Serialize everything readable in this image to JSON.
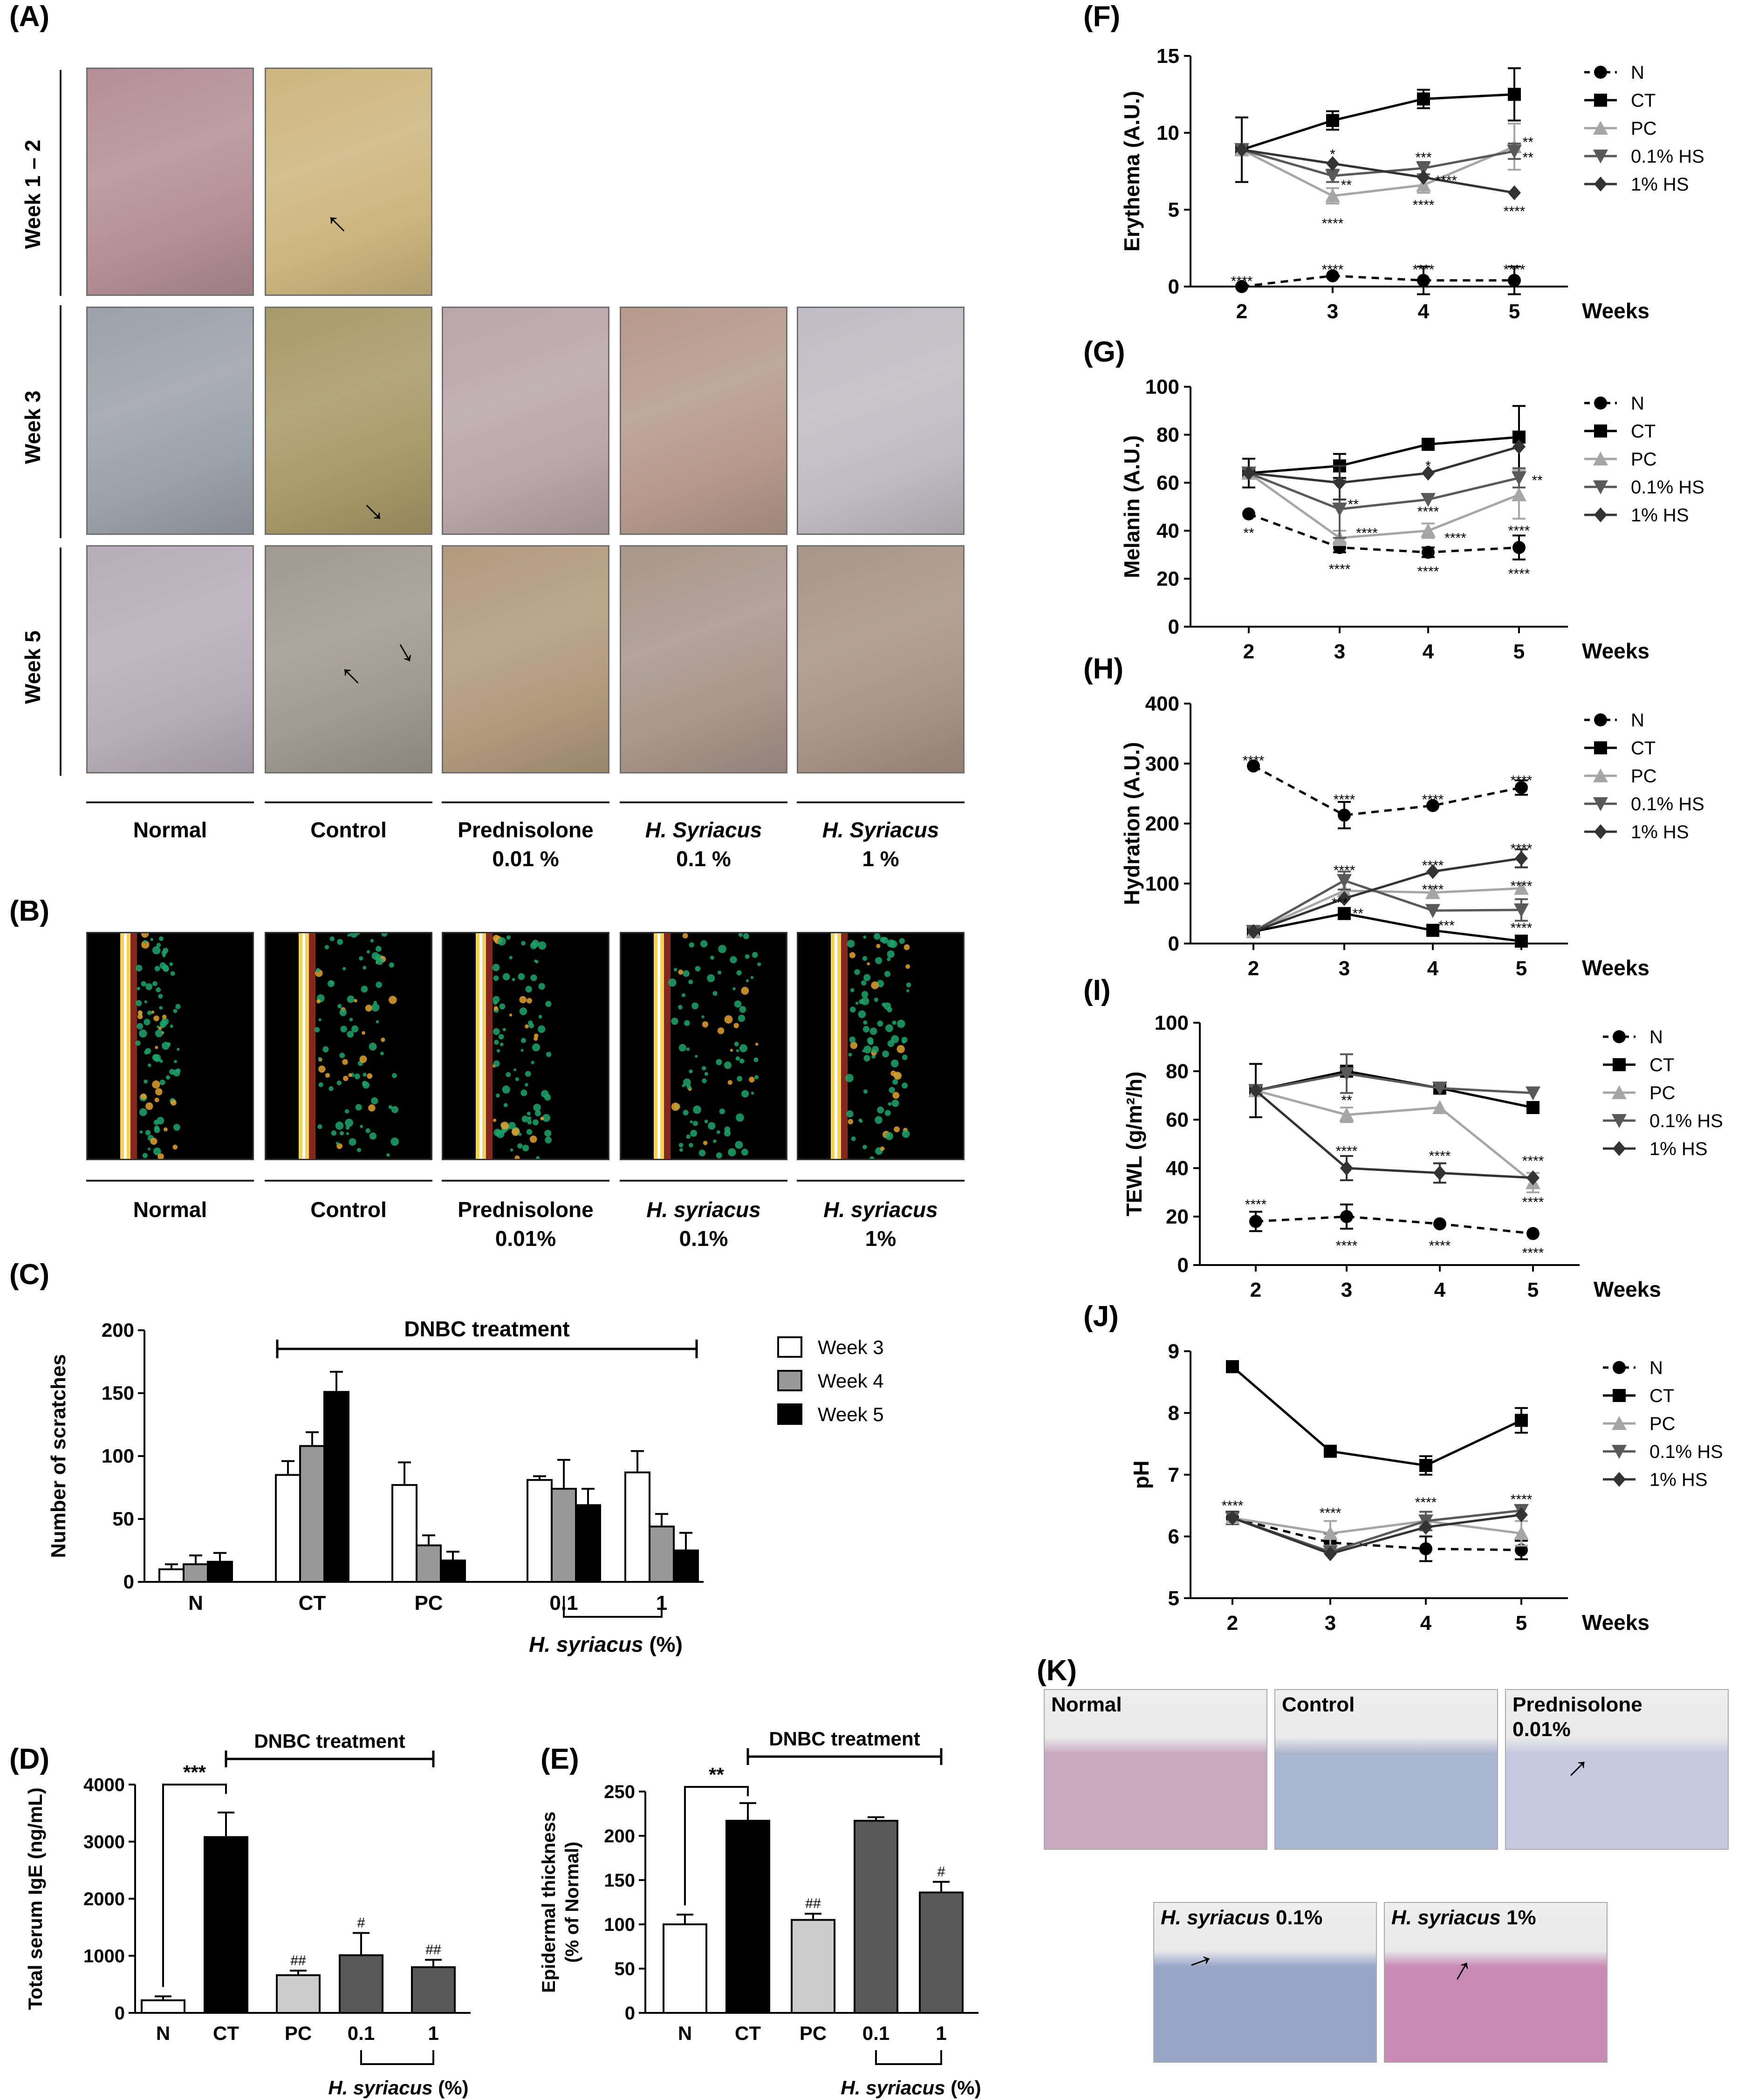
{
  "panel_labels": {
    "A": "(A)",
    "B": "(B)",
    "C": "(C)",
    "D": "(D)",
    "E": "(E)",
    "F": "(F)",
    "G": "(G)",
    "H": "(H)",
    "I": "(I)",
    "J": "(J)",
    "K": "(K)"
  },
  "panel_a": {
    "rows": [
      "Week 1 – 2",
      "Week 3",
      "Week 5"
    ],
    "captions": [
      {
        "line1": "Normal",
        "line2": "",
        "italic": false
      },
      {
        "line1": "Control",
        "line2": "",
        "italic": false
      },
      {
        "line1": "Prednisolone",
        "line2": "0.01 %",
        "italic": false
      },
      {
        "line1": "H. Syriacus",
        "line2": "0.1 %",
        "italic": true
      },
      {
        "line1": "H. Syriacus",
        "line2": "1 %",
        "italic": true
      }
    ],
    "tile_colors": [
      [
        "#b48f99",
        "#cdb67f",
        null,
        null,
        null
      ],
      [
        "#9da1ab",
        "#a89a68",
        "#b8a6a8",
        "#b69a8c",
        "#c0bcc3"
      ],
      [
        "#b7adb7",
        "#9f9a90",
        "#b29a7c",
        "#a9968c",
        "#a89585"
      ]
    ]
  },
  "panel_b": {
    "captions": [
      {
        "line1": "Normal",
        "line2": "",
        "italic": false
      },
      {
        "line1": "Control",
        "line2": "",
        "italic": false
      },
      {
        "line1": "Prednisolone",
        "line2": "0.01%",
        "italic": false
      },
      {
        "line1": "H. syriacus",
        "line2": "0.1%",
        "italic": true
      },
      {
        "line1": "H. syriacus",
        "line2": "1%",
        "italic": true
      }
    ]
  },
  "panel_k": {
    "labels": [
      "Normal",
      "Control",
      "Prednisolone\n0.01%",
      "H. syriacus 0.1%",
      "H. syriacus 1%"
    ]
  },
  "chart_data": [
    {
      "id": "C",
      "type": "bar",
      "ylabel": "Number of scratches",
      "ylim": [
        0,
        200
      ],
      "yticks": [
        0,
        50,
        100,
        150,
        200
      ],
      "categories": [
        "N",
        "CT",
        "PC",
        "0.1",
        "1"
      ],
      "series": [
        {
          "name": "Week 3",
          "color": "#ffffff",
          "values": [
            10,
            85,
            77,
            81,
            87
          ],
          "errors": [
            4,
            11,
            18,
            3,
            17
          ]
        },
        {
          "name": "Week 4",
          "color": "#999999",
          "values": [
            14,
            108,
            29,
            74,
            44
          ],
          "errors": [
            7,
            11,
            8,
            23,
            10
          ]
        },
        {
          "name": "Week 5",
          "color": "#000000",
          "values": [
            16,
            151,
            17,
            61,
            25
          ],
          "errors": [
            7,
            16,
            7,
            13,
            14
          ]
        }
      ],
      "annotation": "DNBC treatment",
      "group_label": "H. syriacus",
      "group_label_suffix": " (%)"
    },
    {
      "id": "D",
      "type": "bar",
      "ylabel": "Total serum IgE (ng/mL)",
      "ylim": [
        0,
        4000
      ],
      "yticks": [
        0,
        1000,
        2000,
        3000,
        4000
      ],
      "categories": [
        "N",
        "CT",
        "PC",
        "0.1",
        "1"
      ],
      "colors": [
        "#ffffff",
        "#000000",
        "#cccccc",
        "#595959",
        "#595959"
      ],
      "values": [
        220,
        3080,
        660,
        1010,
        800
      ],
      "errors": [
        70,
        430,
        80,
        390,
        130
      ],
      "marks": [
        "",
        "",
        "##",
        "#",
        "##"
      ],
      "significance": "***",
      "annotation": "DNBC treatment",
      "group_label": "H. syriacus",
      "group_label_suffix": " (%)"
    },
    {
      "id": "E",
      "type": "bar",
      "ylabel": "Epidermal thickness",
      "ylabel2": "(% of Normal)",
      "ylim": [
        0,
        250
      ],
      "yticks": [
        0,
        50,
        100,
        150,
        200,
        250
      ],
      "categories": [
        "N",
        "CT",
        "PC",
        "0.1",
        "1"
      ],
      "colors": [
        "#ffffff",
        "#000000",
        "#cccccc",
        "#595959",
        "#595959"
      ],
      "values": [
        100,
        217,
        105,
        217,
        136
      ],
      "errors": [
        11,
        20,
        7,
        4,
        12
      ],
      "marks": [
        "",
        "",
        "##",
        "",
        "#"
      ],
      "significance": "**",
      "annotation": "DNBC treatment",
      "group_label": "H. syriacus",
      "group_label_suffix": " (%)"
    },
    {
      "id": "F",
      "type": "line",
      "ylabel": "Erythema (A.U.)",
      "xlabel": "Weeks",
      "ylim": [
        0,
        15
      ],
      "yticks": [
        0,
        5,
        10,
        15
      ],
      "x": [
        2,
        3,
        4,
        5
      ],
      "series": [
        {
          "name": "N",
          "values": [
            0,
            0.7,
            0.4,
            0.4
          ],
          "errors": [
            0,
            0,
            0.9,
            0.9
          ]
        },
        {
          "name": "CT",
          "values": [
            8.9,
            10.8,
            12.2,
            12.5
          ],
          "errors": [
            2.1,
            0.6,
            0.6,
            1.7
          ]
        },
        {
          "name": "PC",
          "values": [
            8.9,
            5.9,
            6.6,
            9.1
          ],
          "errors": [
            0,
            0.5,
            0.5,
            1.5
          ]
        },
        {
          "name": "0.1% HS",
          "values": [
            8.9,
            7.2,
            7.7,
            8.8
          ],
          "errors": [
            0,
            0.4,
            0.4,
            0.5
          ]
        },
        {
          "name": "1% HS",
          "values": [
            8.9,
            8.0,
            7.1,
            6.1
          ],
          "errors": [
            0,
            0,
            0,
            0
          ]
        }
      ],
      "stars": [
        {
          "x": 2,
          "y": 0.35,
          "t": "****",
          "dx": 0
        },
        {
          "x": 3,
          "y": 1.1,
          "t": "****",
          "dx": 0
        },
        {
          "x": 4,
          "y": 1.1,
          "t": "****",
          "dx": 0
        },
        {
          "x": 5,
          "y": 1.1,
          "t": "****",
          "dx": 0
        },
        {
          "x": 3,
          "y": 8.6,
          "t": "*",
          "dx": 0
        },
        {
          "x": 3,
          "y": 6.6,
          "t": "**",
          "dx": 0.15
        },
        {
          "x": 3,
          "y": 4.1,
          "t": "****",
          "dx": 0
        },
        {
          "x": 4,
          "y": 8.4,
          "t": "***",
          "dx": 0
        },
        {
          "x": 4,
          "y": 6.9,
          "t": "****",
          "dx": 0.25
        },
        {
          "x": 4,
          "y": 5.3,
          "t": "****",
          "dx": 0
        },
        {
          "x": 5,
          "y": 9.4,
          "t": "**",
          "dx": 0.15
        },
        {
          "x": 5,
          "y": 8.4,
          "t": "**",
          "dx": 0.15
        },
        {
          "x": 5,
          "y": 4.9,
          "t": "****",
          "dx": 0
        }
      ]
    },
    {
      "id": "G",
      "type": "line",
      "ylabel": "Melanin (A.U.)",
      "xlabel": "Weeks",
      "ylim": [
        0,
        100
      ],
      "yticks": [
        0,
        20,
        40,
        60,
        80,
        100
      ],
      "x": [
        2,
        3,
        4,
        5
      ],
      "series": [
        {
          "name": "N",
          "values": [
            47,
            33,
            31,
            33
          ],
          "errors": [
            0,
            2,
            2,
            5
          ]
        },
        {
          "name": "CT",
          "values": [
            64,
            67,
            76,
            79
          ],
          "errors": [
            6,
            5,
            0,
            13
          ]
        },
        {
          "name": "PC",
          "values": [
            64,
            37,
            40,
            55
          ],
          "errors": [
            0,
            3,
            3,
            10
          ]
        },
        {
          "name": "0.1% HS",
          "values": [
            64,
            49,
            53,
            62
          ],
          "errors": [
            0,
            12,
            0,
            4
          ]
        },
        {
          "name": "1% HS",
          "values": [
            64,
            60,
            64,
            75
          ],
          "errors": [
            0,
            7,
            0,
            0
          ]
        }
      ],
      "stars": [
        {
          "x": 2,
          "y": 39,
          "t": "**",
          "dx": 0
        },
        {
          "x": 3,
          "y": 24,
          "t": "****",
          "dx": 0
        },
        {
          "x": 4,
          "y": 23,
          "t": "****",
          "dx": 0
        },
        {
          "x": 5,
          "y": 22,
          "t": "****",
          "dx": 0
        },
        {
          "x": 3,
          "y": 51,
          "t": "**",
          "dx": 0.15
        },
        {
          "x": 3,
          "y": 39,
          "t": "****",
          "dx": 0.3
        },
        {
          "x": 4,
          "y": 67,
          "t": "*",
          "dx": 0
        },
        {
          "x": 4,
          "y": 48,
          "t": "****",
          "dx": 0
        },
        {
          "x": 4,
          "y": 37,
          "t": "****",
          "dx": 0.3
        },
        {
          "x": 5,
          "y": 61,
          "t": "**",
          "dx": 0.2
        },
        {
          "x": 5,
          "y": 40,
          "t": "****",
          "dx": 0
        }
      ]
    },
    {
      "id": "H",
      "type": "line",
      "ylabel": "Hydration (A.U.)",
      "xlabel": "Weeks",
      "ylim": [
        0,
        400
      ],
      "yticks": [
        0,
        100,
        200,
        300,
        400
      ],
      "x": [
        2,
        3,
        4,
        5
      ],
      "series": [
        {
          "name": "N",
          "values": [
            296,
            214,
            230,
            260
          ],
          "errors": [
            0,
            22,
            0,
            12
          ]
        },
        {
          "name": "CT",
          "values": [
            20,
            50,
            22,
            4
          ],
          "errors": [
            0,
            0,
            0,
            0
          ]
        },
        {
          "name": "PC",
          "values": [
            20,
            88,
            85,
            92
          ],
          "errors": [
            0,
            0,
            0,
            0
          ]
        },
        {
          "name": "0.1% HS",
          "values": [
            20,
            105,
            55,
            56
          ],
          "errors": [
            0,
            15,
            0,
            18
          ]
        },
        {
          "name": "1% HS",
          "values": [
            20,
            75,
            120,
            142
          ],
          "errors": [
            0,
            0,
            0,
            15
          ]
        }
      ],
      "stars": [
        {
          "x": 2,
          "y": 305,
          "t": "****",
          "dx": 0
        },
        {
          "x": 3,
          "y": 240,
          "t": "****",
          "dx": 0
        },
        {
          "x": 4,
          "y": 240,
          "t": "****",
          "dx": 0
        },
        {
          "x": 5,
          "y": 272,
          "t": "****",
          "dx": 0
        },
        {
          "x": 3,
          "y": 122,
          "t": "****",
          "dx": 0
        },
        {
          "x": 3,
          "y": 68,
          "t": "***",
          "dx": -0.05
        },
        {
          "x": 3,
          "y": 50,
          "t": "**",
          "dx": 0.15
        },
        {
          "x": 4,
          "y": 130,
          "t": "****",
          "dx": 0
        },
        {
          "x": 4,
          "y": 90,
          "t": "****",
          "dx": 0
        },
        {
          "x": 4,
          "y": 30,
          "t": "***",
          "dx": 0.15
        },
        {
          "x": 5,
          "y": 158,
          "t": "****",
          "dx": 0
        },
        {
          "x": 5,
          "y": 96,
          "t": "****",
          "dx": 0
        },
        {
          "x": 5,
          "y": 26,
          "t": "****",
          "dx": 0
        }
      ]
    },
    {
      "id": "I",
      "type": "line",
      "ylabel": "TEWL (g/m²/h)",
      "xlabel": "Weeks",
      "ylim": [
        0,
        100
      ],
      "yticks": [
        0,
        20,
        40,
        60,
        80,
        100
      ],
      "x": [
        2,
        3,
        4,
        5
      ],
      "series": [
        {
          "name": "N",
          "values": [
            18,
            20,
            17,
            13
          ],
          "errors": [
            4,
            5,
            0,
            0
          ]
        },
        {
          "name": "CT",
          "values": [
            72,
            80,
            73,
            65
          ],
          "errors": [
            11,
            0,
            0,
            0
          ]
        },
        {
          "name": "PC",
          "values": [
            72,
            62,
            65,
            34
          ],
          "errors": [
            0,
            3,
            0,
            4
          ]
        },
        {
          "name": "0.1% HS",
          "values": [
            72,
            79,
            73,
            71
          ],
          "errors": [
            0,
            8,
            0,
            0
          ]
        },
        {
          "name": "1% HS",
          "values": [
            72,
            40,
            38,
            36
          ],
          "errors": [
            0,
            5,
            4,
            0
          ]
        }
      ],
      "stars": [
        {
          "x": 2,
          "y": 25,
          "t": "****",
          "dx": 0
        },
        {
          "x": 3,
          "y": 8,
          "t": "****",
          "dx": 0
        },
        {
          "x": 4,
          "y": 8,
          "t": "****",
          "dx": 0
        },
        {
          "x": 5,
          "y": 5,
          "t": "****",
          "dx": 0
        },
        {
          "x": 3,
          "y": 68,
          "t": "**",
          "dx": 0
        },
        {
          "x": 3,
          "y": 47,
          "t": "****",
          "dx": 0
        },
        {
          "x": 4,
          "y": 45,
          "t": "****",
          "dx": 0
        },
        {
          "x": 5,
          "y": 43,
          "t": "****",
          "dx": 0
        },
        {
          "x": 5,
          "y": 26,
          "t": "****",
          "dx": 0
        }
      ]
    },
    {
      "id": "J",
      "type": "line",
      "ylabel": "pH",
      "xlabel": "Weeks",
      "ylim": [
        5,
        9
      ],
      "yticks": [
        5,
        6,
        7,
        8,
        9
      ],
      "x": [
        2,
        3,
        4,
        5
      ],
      "series": [
        {
          "name": "N",
          "values": [
            6.3,
            5.9,
            5.8,
            5.78
          ],
          "errors": [
            0.1,
            0.15,
            0.2,
            0.15
          ]
        },
        {
          "name": "CT",
          "values": [
            8.75,
            7.38,
            7.15,
            7.88
          ],
          "errors": [
            0,
            0,
            0.15,
            0.2
          ]
        },
        {
          "name": "PC",
          "values": [
            6.3,
            6.05,
            6.25,
            6.05
          ],
          "errors": [
            0,
            0.2,
            0,
            0.2
          ]
        },
        {
          "name": "0.1% HS",
          "values": [
            6.3,
            5.75,
            6.25,
            6.42
          ],
          "errors": [
            0,
            0,
            0.15,
            0
          ]
        },
        {
          "name": "1% HS",
          "values": [
            6.3,
            5.72,
            6.15,
            6.35
          ],
          "errors": [
            0,
            0,
            0,
            0
          ]
        }
      ],
      "stars": [
        {
          "x": 2,
          "y": 6.5,
          "t": "****",
          "dx": 0
        },
        {
          "x": 3,
          "y": 6.38,
          "t": "****",
          "dx": 0
        },
        {
          "x": 4,
          "y": 6.55,
          "t": "****",
          "dx": 0
        },
        {
          "x": 5,
          "y": 6.6,
          "t": "****",
          "dx": 0
        }
      ]
    }
  ],
  "line_styles": {
    "N": {
      "color": "#000000",
      "marker": "circle",
      "dash": true
    },
    "CT": {
      "color": "#000000",
      "marker": "square",
      "dash": false
    },
    "PC": {
      "color": "#a6a6a6",
      "marker": "triangle-up",
      "dash": false
    },
    "0.1% HS": {
      "color": "#595959",
      "marker": "triangle-down",
      "dash": false
    },
    "1% HS": {
      "color": "#333333",
      "marker": "diamond",
      "dash": false
    }
  }
}
